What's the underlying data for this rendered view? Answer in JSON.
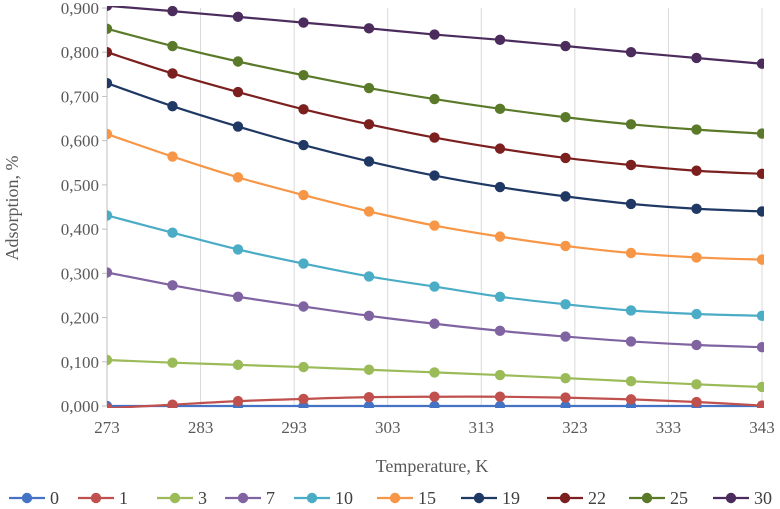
{
  "chart_data": {
    "type": "line",
    "xlabel": "Temperature, K",
    "ylabel": "Adsorption, %",
    "xlim": [
      273,
      343
    ],
    "ylim": [
      0,
      0.9
    ],
    "x_ticks": [
      "273",
      "283",
      "293",
      "303",
      "313",
      "323",
      "333",
      "343"
    ],
    "y_ticks": [
      "0,000",
      "0,100",
      "0,200",
      "0,300",
      "0,400",
      "0,500",
      "0,600",
      "0,700",
      "0,800",
      "0,900"
    ],
    "grid": "vertical",
    "legend_position": "bottom",
    "x": [
      273,
      280,
      287,
      294,
      301,
      308,
      315,
      322,
      329,
      336,
      343
    ],
    "series": [
      {
        "name": "0",
        "color": "#4472c4",
        "values": [
          0,
          0,
          0,
          0,
          0,
          0,
          0,
          0,
          0,
          0,
          0
        ]
      },
      {
        "name": "1",
        "color": "#c0504d",
        "values": [
          -0.005,
          0.003,
          0.011,
          0.016,
          0.02,
          0.021,
          0.021,
          0.019,
          0.015,
          0.009,
          0.001
        ]
      },
      {
        "name": "3",
        "color": "#9bbb59",
        "values": [
          0.104,
          0.098,
          0.093,
          0.088,
          0.082,
          0.076,
          0.07,
          0.063,
          0.056,
          0.049,
          0.043
        ]
      },
      {
        "name": "7",
        "color": "#8064a2",
        "values": [
          0.302,
          0.273,
          0.247,
          0.225,
          0.204,
          0.186,
          0.17,
          0.157,
          0.146,
          0.138,
          0.133
        ]
      },
      {
        "name": "10",
        "color": "#4bacc6",
        "values": [
          0.431,
          0.392,
          0.354,
          0.322,
          0.293,
          0.27,
          0.247,
          0.23,
          0.216,
          0.208,
          0.204
        ]
      },
      {
        "name": "15",
        "color": "#f79646",
        "values": [
          0.615,
          0.564,
          0.517,
          0.477,
          0.44,
          0.408,
          0.383,
          0.362,
          0.346,
          0.336,
          0.331
        ]
      },
      {
        "name": "19",
        "color": "#1f3864",
        "values": [
          0.73,
          0.678,
          0.632,
          0.59,
          0.553,
          0.521,
          0.495,
          0.474,
          0.457,
          0.446,
          0.44
        ]
      },
      {
        "name": "22",
        "color": "#7b1f1f",
        "values": [
          0.8,
          0.752,
          0.71,
          0.671,
          0.637,
          0.607,
          0.582,
          0.561,
          0.545,
          0.532,
          0.525
        ]
      },
      {
        "name": "25",
        "color": "#5a7a2a",
        "values": [
          0.853,
          0.814,
          0.779,
          0.748,
          0.719,
          0.694,
          0.672,
          0.653,
          0.637,
          0.625,
          0.616
        ]
      },
      {
        "name": "30",
        "color": "#4b2c5c",
        "values": [
          0.905,
          0.893,
          0.88,
          0.867,
          0.854,
          0.84,
          0.828,
          0.814,
          0.8,
          0.787,
          0.774
        ]
      }
    ]
  }
}
